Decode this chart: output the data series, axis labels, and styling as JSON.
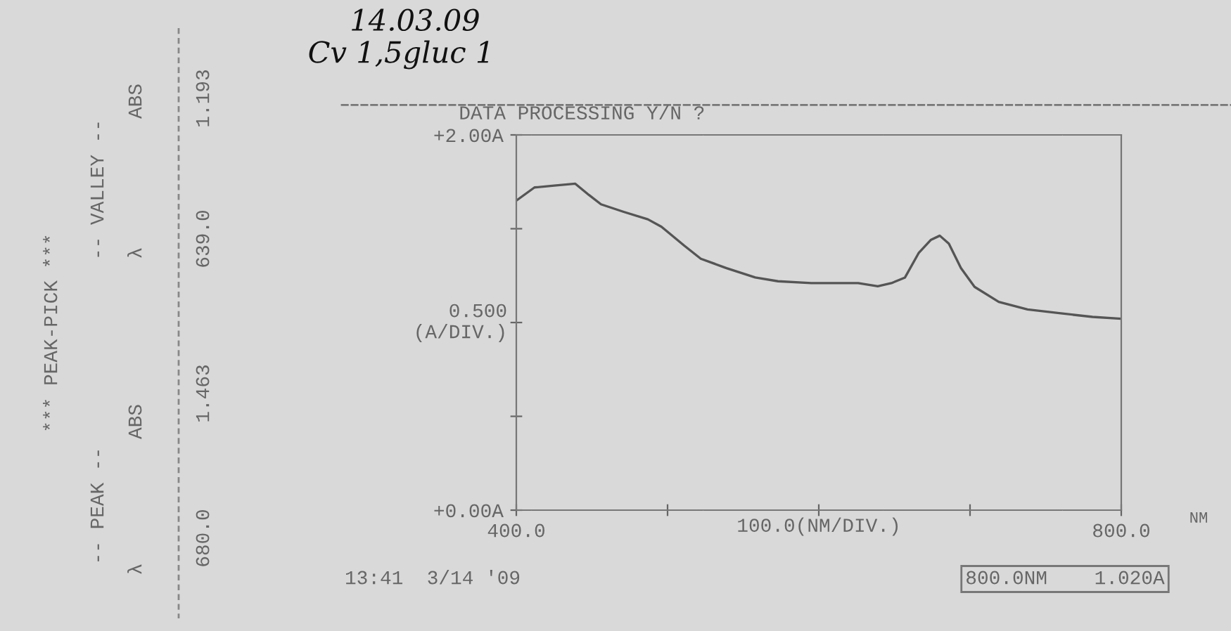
{
  "chart_data": {
    "type": "line",
    "title": "DATA PROCESSING Y/N ?",
    "xlabel": "100.0(NM/DIV.)",
    "ylabel": "0.500\n(A/DIV.)",
    "x": [
      400,
      412,
      425,
      439,
      448,
      456,
      471,
      487,
      496,
      511,
      522,
      539,
      558,
      573,
      595,
      617,
      626,
      639,
      648,
      657,
      666,
      674,
      680,
      686,
      694,
      703,
      719,
      738,
      759,
      781,
      800
    ],
    "series": [
      {
        "color": "#555555",
        "values": [
          1.65,
          1.72,
          1.73,
          1.74,
          1.68,
          1.63,
          1.59,
          1.55,
          1.51,
          1.41,
          1.34,
          1.29,
          1.24,
          1.22,
          1.21,
          1.21,
          1.21,
          1.193,
          1.21,
          1.24,
          1.37,
          1.44,
          1.463,
          1.42,
          1.29,
          1.19,
          1.11,
          1.07,
          1.05,
          1.03,
          1.02
        ]
      }
    ],
    "xlim": [
      400,
      800
    ],
    "ylim": [
      0,
      2
    ],
    "xticks": [
      {
        "value": 400,
        "label": "400.0"
      },
      {
        "value": 500,
        "label": null
      },
      {
        "value": 600,
        "label": null
      },
      {
        "value": 700,
        "label": null
      },
      {
        "value": 800,
        "label": "800.0"
      }
    ],
    "yticks": [
      {
        "value": 0,
        "label": "+0.00A"
      },
      {
        "value": 0.5,
        "label": null
      },
      {
        "value": 1.0,
        "label": null
      },
      {
        "value": 1.5,
        "label": null
      },
      {
        "value": 2.0,
        "label": "+2.00A"
      }
    ],
    "grid": false,
    "legend": false,
    "annotations": [
      "*** PEAK-PICK ***",
      "-- PEAK --",
      "λ",
      "ABS",
      "680.0",
      "1.463",
      "-- VALLEY --",
      "λ",
      "ABS",
      "639.0",
      "1.193",
      "14.03.09",
      "Cv 1,5gluc 1",
      "NM",
      "13:41  3/14 '09",
      "800.0NM    1.020A"
    ]
  }
}
